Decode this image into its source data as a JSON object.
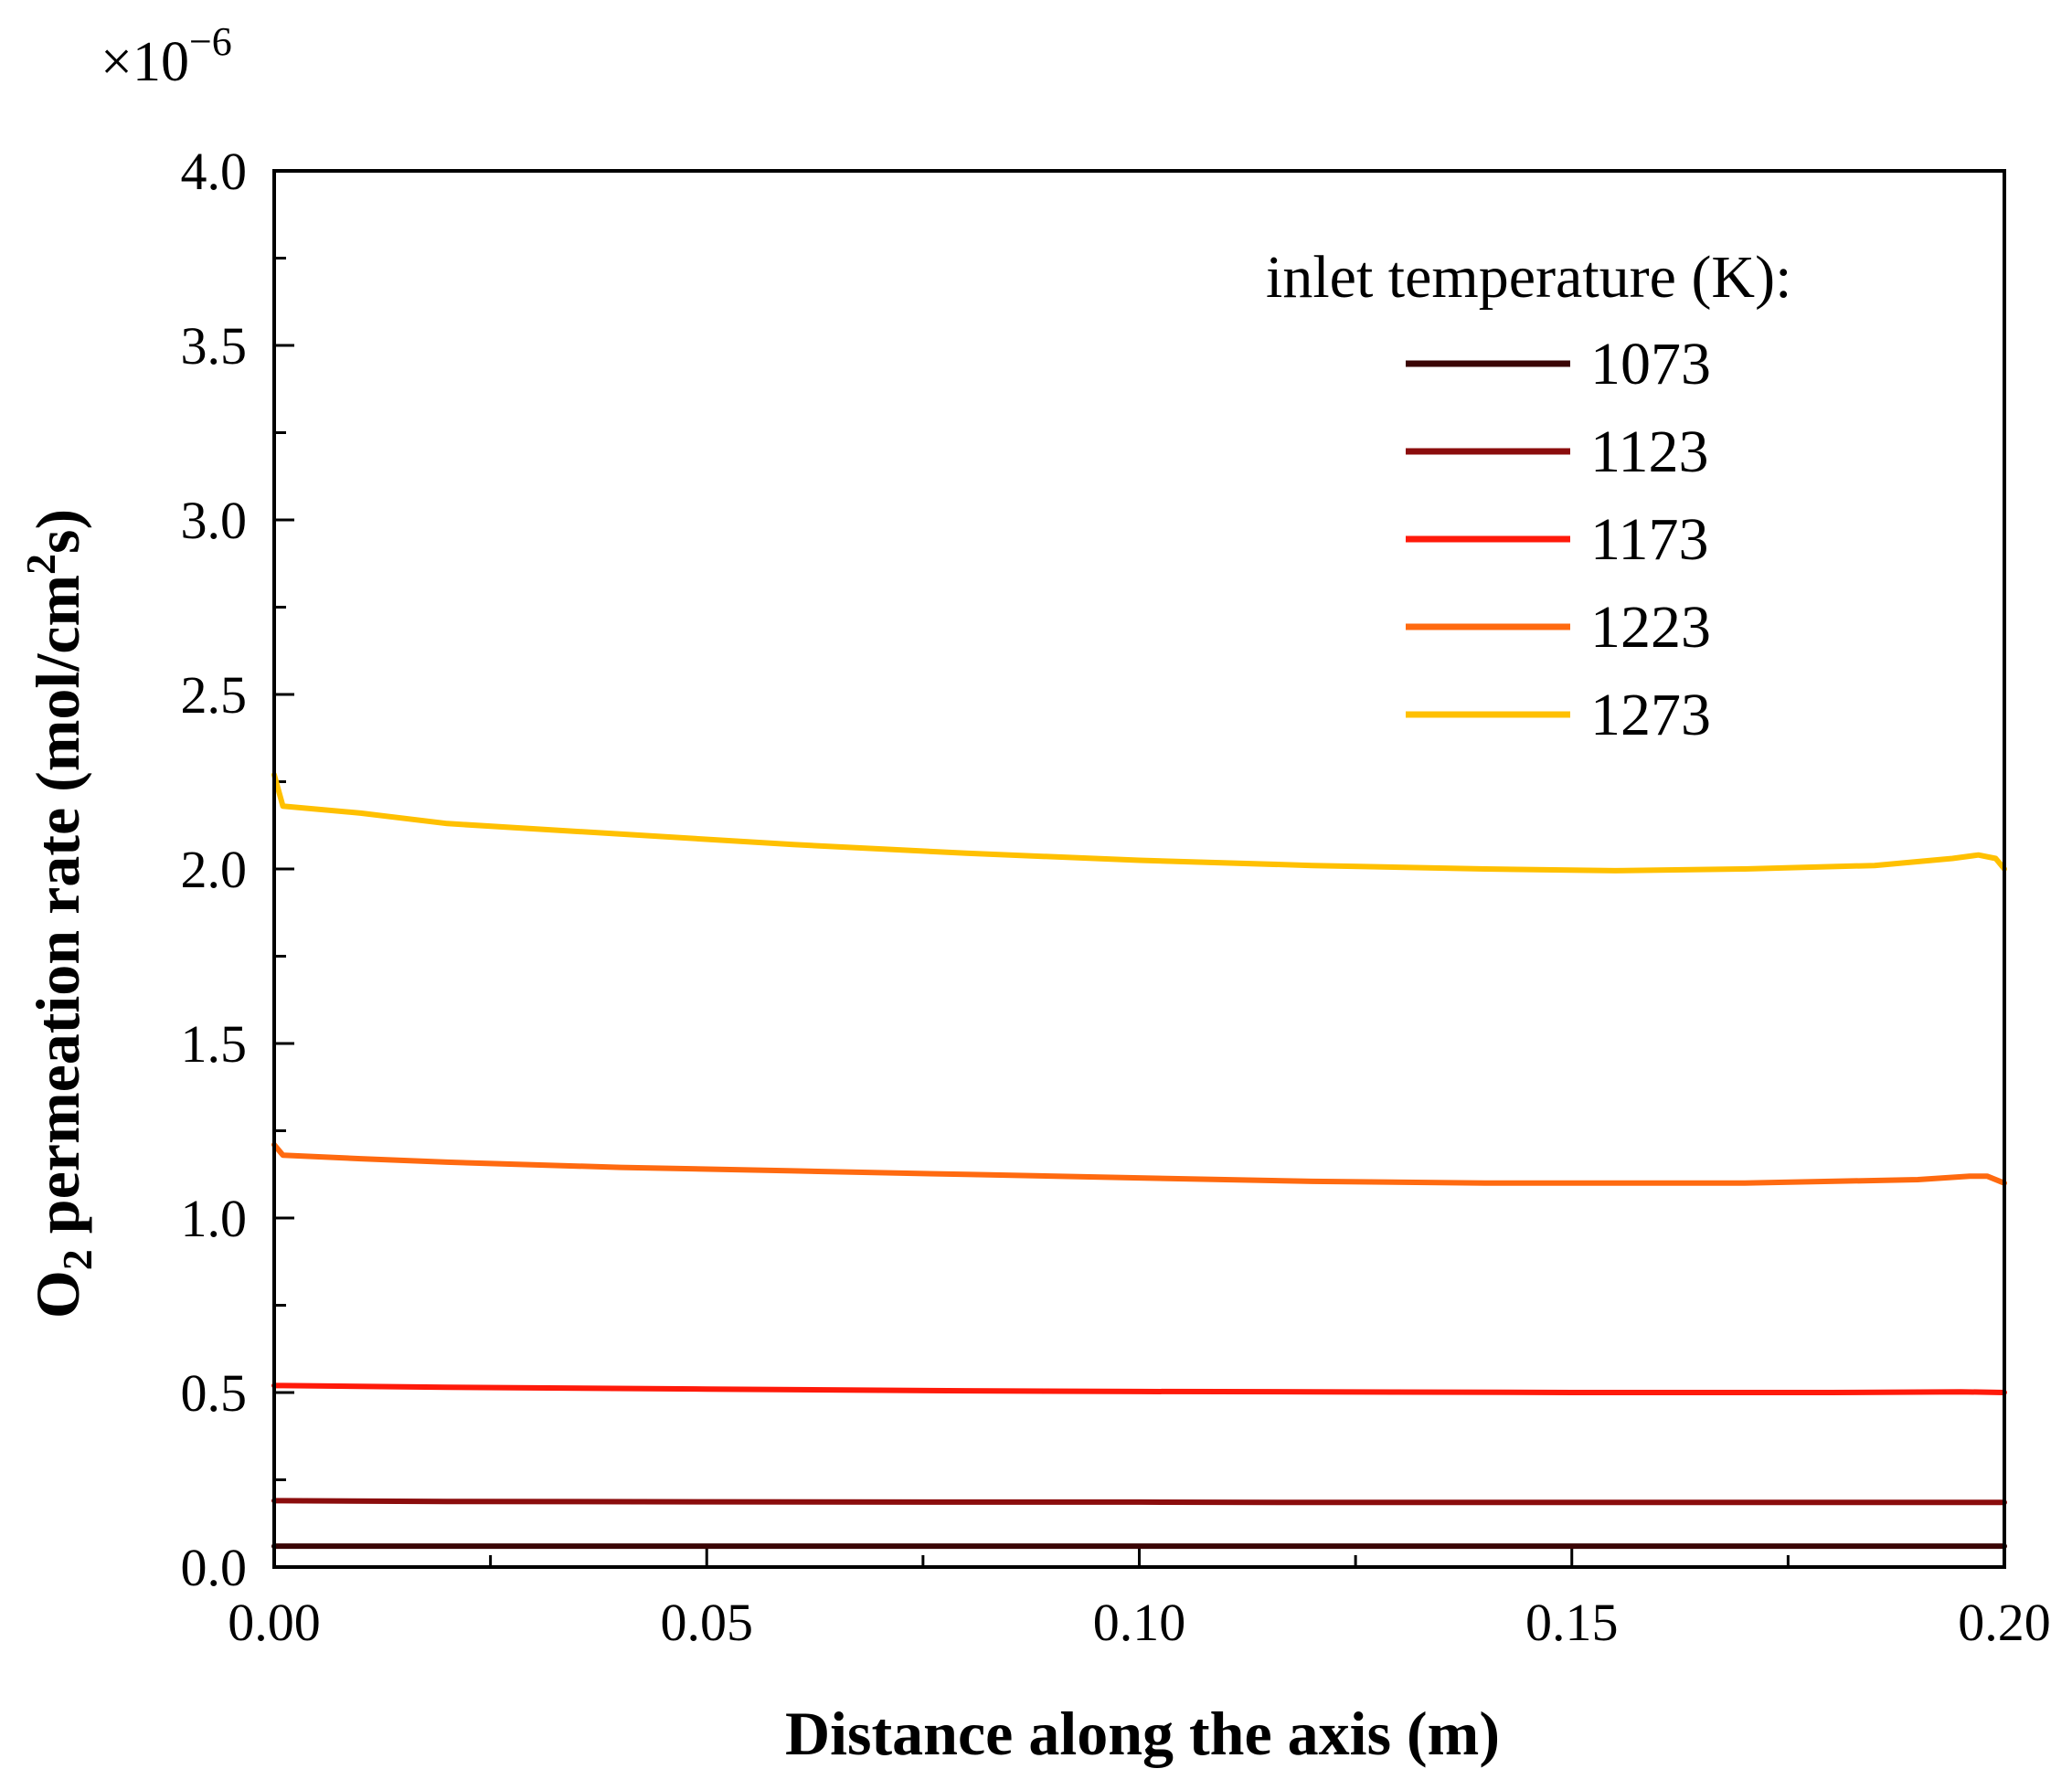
{
  "chart_data": {
    "type": "line",
    "multiplier": {
      "base": "×10",
      "exponent": "−6"
    },
    "xlabel": "Distance along the axis (m)",
    "ylabel": {
      "pre": "O",
      "sub": "2",
      "mid": " permeation rate (mol/cm",
      "sup": "2",
      "post": "s)"
    },
    "xlim": [
      0,
      0.2
    ],
    "ylim": [
      0,
      4.0
    ],
    "xticks": [
      {
        "value": 0.0,
        "label": "0.00"
      },
      {
        "value": 0.05,
        "label": "0.05"
      },
      {
        "value": 0.1,
        "label": "0.10"
      },
      {
        "value": 0.15,
        "label": "0.15"
      },
      {
        "value": 0.2,
        "label": "0.20"
      }
    ],
    "yticks": [
      {
        "value": 0.0,
        "label": "0.0"
      },
      {
        "value": 0.5,
        "label": "0.5"
      },
      {
        "value": 1.0,
        "label": "1.0"
      },
      {
        "value": 1.5,
        "label": "1.5"
      },
      {
        "value": 2.0,
        "label": "2.0"
      },
      {
        "value": 2.5,
        "label": "2.5"
      },
      {
        "value": 3.0,
        "label": "3.0"
      },
      {
        "value": 3.5,
        "label": "3.5"
      },
      {
        "value": 4.0,
        "label": "4.0"
      }
    ],
    "legend": {
      "title": "inlet temperature (K):",
      "position": "top-right"
    },
    "series": [
      {
        "name": "1073",
        "color": "#3a0505",
        "x": [
          0,
          0.05,
          0.1,
          0.15,
          0.2
        ],
        "y": [
          0.06,
          0.06,
          0.06,
          0.06,
          0.06
        ]
      },
      {
        "name": "1123",
        "color": "#8b0d0d",
        "x": [
          0,
          0.001,
          0.02,
          0.05,
          0.08,
          0.1,
          0.12,
          0.15,
          0.18,
          0.195,
          0.2
        ],
        "y": [
          0.19,
          0.19,
          0.188,
          0.187,
          0.186,
          0.186,
          0.185,
          0.185,
          0.185,
          0.185,
          0.185
        ]
      },
      {
        "name": "1173",
        "color": "#ff1a0a",
        "x": [
          0,
          0.001,
          0.02,
          0.05,
          0.08,
          0.1,
          0.12,
          0.15,
          0.18,
          0.195,
          0.2
        ],
        "y": [
          0.52,
          0.52,
          0.515,
          0.51,
          0.505,
          0.503,
          0.502,
          0.5,
          0.5,
          0.502,
          0.5
        ]
      },
      {
        "name": "1223",
        "color": "#ff6a10",
        "x": [
          0,
          0.001,
          0.01,
          0.02,
          0.04,
          0.06,
          0.08,
          0.1,
          0.12,
          0.14,
          0.155,
          0.17,
          0.19,
          0.196,
          0.198,
          0.2
        ],
        "y": [
          1.21,
          1.18,
          1.17,
          1.16,
          1.145,
          1.135,
          1.125,
          1.115,
          1.105,
          1.1,
          1.1,
          1.1,
          1.11,
          1.12,
          1.12,
          1.1
        ]
      },
      {
        "name": "1273",
        "color": "#ffc000",
        "x": [
          0,
          0.001,
          0.01,
          0.02,
          0.04,
          0.06,
          0.08,
          0.1,
          0.12,
          0.14,
          0.155,
          0.17,
          0.185,
          0.194,
          0.197,
          0.199,
          0.2
        ],
        "y": [
          2.27,
          2.18,
          2.16,
          2.13,
          2.1,
          2.07,
          2.045,
          2.025,
          2.01,
          2.0,
          1.995,
          2.0,
          2.01,
          2.03,
          2.04,
          2.03,
          2.0
        ]
      }
    ]
  }
}
